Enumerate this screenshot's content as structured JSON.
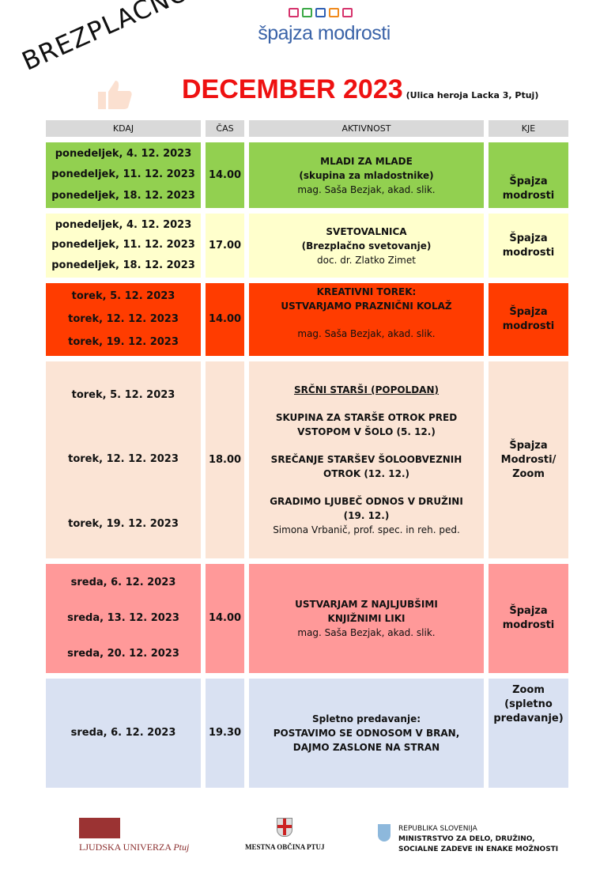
{
  "banner": "BREZPLAČNO!",
  "logo": {
    "text": "špajza modrosti",
    "square_colors": [
      "#d6336c",
      "#3aa845",
      "#2f5fb3",
      "#f08a1c",
      "#d6336c"
    ]
  },
  "title": {
    "month": "DECEMBER 2023",
    "address": "(Ulica heroja Lacka 3, Ptuj)"
  },
  "table": {
    "headers": [
      "KDAJ",
      "ČAS",
      "AKTIVNOST",
      "KJE"
    ],
    "rows": [
      {
        "color": "#92d050",
        "dates": [
          "ponedeljek, 4. 12. 2023",
          "ponedeljek, 11. 12. 2023",
          "ponedeljek, 18. 12. 2023"
        ],
        "time": "14.00",
        "activity": [
          {
            "text": "MLADI ZA MLADE",
            "style": "b"
          },
          {
            "text": "(skupina za mladostnike)",
            "style": "b"
          },
          {
            "text": "mag. Saša Bezjak, akad. slik.",
            "style": ""
          }
        ],
        "place": [
          "Špajza",
          "modrosti"
        ],
        "place_align": "end"
      },
      {
        "color": "#ffffcc",
        "dates": [
          "ponedeljek, 4. 12. 2023",
          "ponedeljek, 11. 12. 2023",
          "ponedeljek, 18. 12. 2023"
        ],
        "time": "17.00",
        "activity": [
          {
            "text": "SVETOVALNICA",
            "style": "b"
          },
          {
            "text": "(Brezplačno svetovanje)",
            "style": "b"
          },
          {
            "text": "doc. dr. Zlatko Zimet",
            "style": ""
          }
        ],
        "place": [
          "Špajza",
          "modrosti"
        ],
        "place_align": "center"
      },
      {
        "color": "#ff3c00",
        "dates": [
          "torek, 5. 12. 2023",
          "torek, 12. 12. 2023",
          "torek, 19. 12. 2023"
        ],
        "time": "14.00",
        "activity": [
          {
            "text": "KREATIVNI TOREK:",
            "style": "b"
          },
          {
            "text": "USTVARJAMO PRAZNIČNI KOLAŽ",
            "style": "b"
          },
          {
            "text": "",
            "style": ""
          },
          {
            "text": "mag. Saša Bezjak, akad. slik.",
            "style": ""
          }
        ],
        "place": [
          "Špajza",
          "modrosti"
        ],
        "place_align": "center"
      },
      {
        "color": "#fbe4d5",
        "dates": [
          "torek, 5. 12. 2023",
          "torek, 12. 12. 2023",
          "torek, 19. 12. 2023"
        ],
        "time": "18.00",
        "activity": [
          {
            "text": "SRČNI STARŠI (POPOLDAN)",
            "style": "b u"
          },
          {
            "text": "",
            "style": ""
          },
          {
            "text": "SKUPINA ZA STARŠE OTROK PRED",
            "style": "b"
          },
          {
            "text": "VSTOPOM V ŠOLO (5. 12.)",
            "style": "b"
          },
          {
            "text": "",
            "style": ""
          },
          {
            "text": "SREČANJE STARŠEV ŠOLOOBVEZNIH",
            "style": "b"
          },
          {
            "text": "OTROK (12. 12.)",
            "style": "b"
          },
          {
            "text": "",
            "style": ""
          },
          {
            "text": "GRADIMO LJUBEČ ODNOS V DRUŽINI",
            "style": "b"
          },
          {
            "text": "(19. 12.)",
            "style": "b"
          },
          {
            "text": "Simona Vrbanič, prof. spec. in reh. ped.",
            "style": ""
          }
        ],
        "place": [
          "Špajza",
          "Modrosti/",
          "Zoom"
        ],
        "place_align": "center"
      },
      {
        "color": "#ff9999",
        "dates": [
          "sreda, 6. 12. 2023",
          "sreda, 13. 12. 2023",
          "sreda, 20. 12. 2023"
        ],
        "time": "14.00",
        "activity": [
          {
            "text": "USTVARJAM Z  NAJLJUBŠIMI",
            "style": "b"
          },
          {
            "text": "KNJIŽNIMI LIKI",
            "style": "b"
          },
          {
            "text": "mag. Saša Bezjak, akad. slik.",
            "style": ""
          }
        ],
        "place": [
          "Špajza",
          "modrosti"
        ],
        "place_align": "center"
      },
      {
        "color": "#d9e1f2",
        "dates": [
          "sreda, 6. 12. 2023"
        ],
        "time": "19.30",
        "activity": [
          {
            "text": "Spletno predavanje:",
            "style": "b"
          },
          {
            "text": "POSTAVIMO SE ODNOSOM V BRAN,",
            "style": "b"
          },
          {
            "text": "DAJMO ZASLONE NA STRAN",
            "style": "b"
          }
        ],
        "place": [
          "Zoom",
          "(spletno",
          "predavanje)"
        ],
        "place_align": "start"
      }
    ]
  },
  "footer": {
    "ljudska_univerza": {
      "name": "LJUDSKA UNIVERZA",
      "city": "Ptuj"
    },
    "mestna_obcina": "MESTNA OBČINA PTUJ",
    "ministry": [
      "REPUBLIKA SLOVENIJA",
      "MINISTRSTVO ZA DELO, DRUŽINO,",
      "SOCIALNE ZADEVE IN ENAKE MOŽNOSTI"
    ]
  }
}
